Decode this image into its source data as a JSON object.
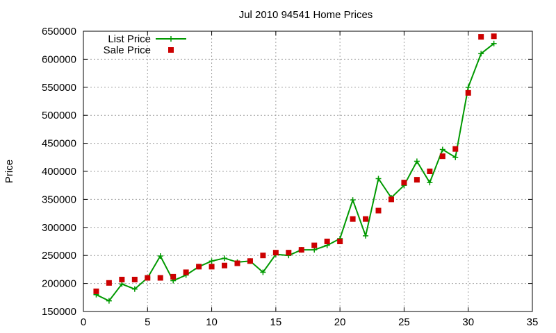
{
  "chart_data": {
    "type": "line",
    "title": "Jul 2010 94541 Home Prices",
    "xlabel": "",
    "ylabel": "Price",
    "xlim": [
      0,
      35
    ],
    "ylim": [
      150000,
      650000
    ],
    "xticks": [
      0,
      5,
      10,
      15,
      20,
      25,
      30,
      35
    ],
    "yticks": [
      150000,
      200000,
      250000,
      300000,
      350000,
      400000,
      450000,
      500000,
      550000,
      600000,
      650000
    ],
    "grid": true,
    "legend_position": "top-left",
    "colors": {
      "list_price": "#009900",
      "sale_price": "#cc0000"
    },
    "x": [
      1,
      2,
      3,
      4,
      5,
      6,
      7,
      8,
      9,
      10,
      11,
      12,
      13,
      14,
      15,
      16,
      17,
      18,
      19,
      20,
      21,
      22,
      23,
      24,
      25,
      26,
      27,
      28,
      29,
      30,
      31,
      32
    ],
    "series": [
      {
        "name": "List Price",
        "style": "line-with-plus-markers",
        "values": [
          180000,
          169000,
          199000,
          190000,
          210000,
          249000,
          205000,
          215000,
          230000,
          240000,
          245000,
          238000,
          240000,
          220000,
          252000,
          250000,
          260000,
          260000,
          268000,
          280000,
          349000,
          285000,
          387000,
          353000,
          375000,
          418000,
          380000,
          439000,
          425000,
          550000,
          610000,
          628000
        ]
      },
      {
        "name": "Sale Price",
        "style": "square-markers",
        "values": [
          186000,
          201000,
          207000,
          207000,
          210000,
          210000,
          212000,
          220000,
          230000,
          230000,
          232000,
          236000,
          240000,
          250000,
          255000,
          255000,
          260000,
          268000,
          275000,
          275000,
          315000,
          315000,
          330000,
          350000,
          380000,
          385000,
          400000,
          427000,
          440000,
          540000,
          640000,
          641000
        ]
      }
    ]
  }
}
